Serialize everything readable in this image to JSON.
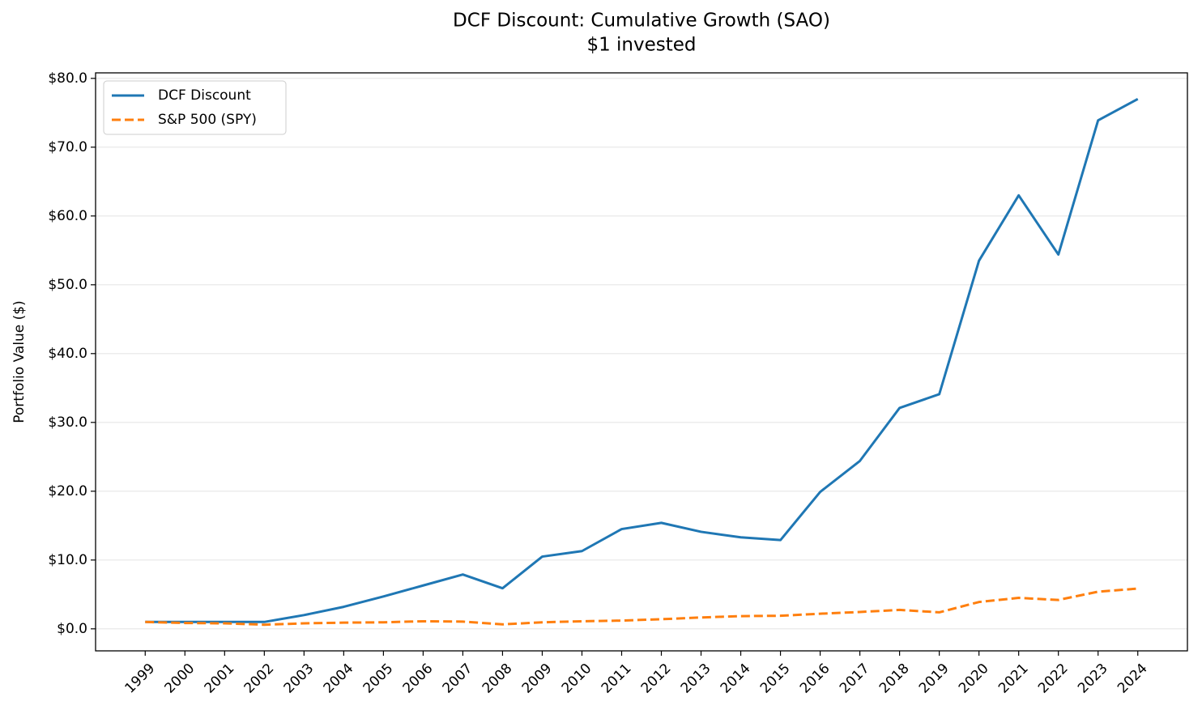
{
  "chart_data": {
    "type": "line",
    "title": "DCF Discount: Cumulative Growth (SAO)",
    "subtitle": "$1 invested",
    "y_label": "Portfolio Value ($)",
    "x": [
      1999,
      2000,
      2001,
      2002,
      2003,
      2004,
      2005,
      2006,
      2007,
      2008,
      2009,
      2010,
      2011,
      2012,
      2013,
      2014,
      2015,
      2016,
      2017,
      2018,
      2019,
      2020,
      2021,
      2022,
      2023,
      2024
    ],
    "series": [
      {
        "name": "DCF Discount",
        "color": "#1f77b4",
        "dash": "solid",
        "values": [
          1.0,
          1.0,
          1.0,
          1.0,
          2.0,
          3.2,
          4.7,
          6.3,
          7.9,
          5.9,
          10.5,
          11.3,
          14.5,
          15.4,
          14.1,
          13.3,
          12.9,
          19.9,
          24.4,
          32.1,
          34.1,
          53.5,
          63.0,
          54.4,
          73.9,
          77.0
        ]
      },
      {
        "name": "S&P 500 (SPY)",
        "color": "#ff7f0e",
        "dash": "dashed",
        "values": [
          1.0,
          0.85,
          0.8,
          0.6,
          0.8,
          0.9,
          0.95,
          1.1,
          1.05,
          0.65,
          0.95,
          1.1,
          1.2,
          1.4,
          1.65,
          1.85,
          1.9,
          2.2,
          2.45,
          2.75,
          2.4,
          3.9,
          4.5,
          4.2,
          5.4,
          5.85
        ]
      }
    ],
    "xlim": [
      1997.75,
      2025.25
    ],
    "xticks": [
      1999,
      2000,
      2001,
      2002,
      2003,
      2004,
      2005,
      2006,
      2007,
      2008,
      2009,
      2010,
      2011,
      2012,
      2013,
      2014,
      2015,
      2016,
      2017,
      2018,
      2019,
      2020,
      2021,
      2022,
      2023,
      2024
    ],
    "ylim": [
      -3.2,
      80.8
    ],
    "yticks": [
      {
        "value": 0,
        "label": "$0.0"
      },
      {
        "value": 10,
        "label": "$10.0"
      },
      {
        "value": 20,
        "label": "$20.0"
      },
      {
        "value": 30,
        "label": "$30.0"
      },
      {
        "value": 40,
        "label": "$40.0"
      },
      {
        "value": 50,
        "label": "$50.0"
      },
      {
        "value": 60,
        "label": "$60.0"
      },
      {
        "value": 70,
        "label": "$70.0"
      },
      {
        "value": 80,
        "label": "$80.0"
      }
    ],
    "grid": true,
    "legend": "upper-left"
  }
}
